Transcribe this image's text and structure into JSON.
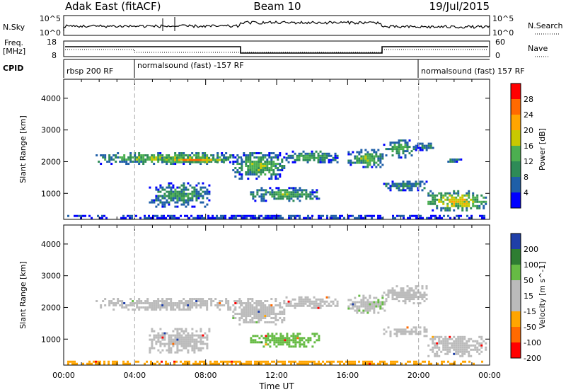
{
  "header": {
    "radar": "Adak East (fitACF)",
    "beam": "Beam 10",
    "date": "19/Jul/2015"
  },
  "top_panels": {
    "nsky_label": "N.Sky",
    "nsky_ticks": [
      "10^5",
      "10^0"
    ],
    "nsearch_label": "N.Search",
    "nsearch_ticks": [
      "10^5",
      "10^0"
    ],
    "freq_label_1": "Freq.",
    "freq_label_2": "[MHz]",
    "freq_ticks": [
      "18",
      "8"
    ],
    "nave_label": "Nave",
    "nave_ticks": [
      "60",
      "0"
    ],
    "cpid_label": "CPID",
    "cpid_segments": [
      {
        "label": "rbsp 200 RF",
        "start": 0,
        "end": 4
      },
      {
        "label": "normalsound (fast) -157 RF",
        "start": 4,
        "end": 20
      },
      {
        "label": "normalsound (fast) 157 RF",
        "start": 20,
        "end": 24
      }
    ]
  },
  "colors": {
    "power_scale": [
      "#0000ff",
      "#1f5fa8",
      "#2e8b57",
      "#4caf50",
      "#c8c800",
      "#ffa500",
      "#ff6a00",
      "#ff0000"
    ],
    "velocity_scale": [
      "#1f3fa8",
      "#2e7d32",
      "#66bb44",
      "#bbbbbb",
      "#bbbbbb",
      "#ffa500",
      "#ff6a00",
      "#ff0000"
    ],
    "grid_dash": "#aaaaaa"
  },
  "chart_data": [
    {
      "type": "heatmap",
      "name": "power",
      "ylabel": "Slant Range [km]",
      "xlabel": "",
      "xlim": [
        0,
        24
      ],
      "ylim": [
        180,
        4600
      ],
      "yticks": [
        1000,
        2000,
        3000,
        4000
      ],
      "colorbar_label": "Power [dB]",
      "colorbar_ticks": [
        "28",
        "24",
        "20",
        "16",
        "12",
        "8",
        "4"
      ],
      "zlim": [
        0,
        32
      ],
      "bands": [
        {
          "t": [
            1.8,
            10.0
          ],
          "r": [
            1900,
            2300
          ],
          "level": 18
        },
        {
          "t": [
            5.5,
            9.5
          ],
          "r": [
            1950,
            2150
          ],
          "level": 26
        },
        {
          "t": [
            9.5,
            12.5
          ],
          "r": [
            1400,
            2300
          ],
          "level": 16
        },
        {
          "t": [
            12.5,
            15.5
          ],
          "r": [
            1950,
            2350
          ],
          "level": 14
        },
        {
          "t": [
            16.0,
            18.2
          ],
          "r": [
            1800,
            2400
          ],
          "level": 17
        },
        {
          "t": [
            18.0,
            19.8
          ],
          "r": [
            2100,
            2700
          ],
          "level": 15
        },
        {
          "t": [
            19.8,
            21.0
          ],
          "r": [
            2300,
            2600
          ],
          "level": 10
        },
        {
          "t": [
            21.5,
            22.5
          ],
          "r": [
            1950,
            2100
          ],
          "level": 12
        },
        {
          "t": [
            4.8,
            8.3
          ],
          "r": [
            550,
            1350
          ],
          "level": 12
        },
        {
          "t": [
            10.5,
            14.5
          ],
          "r": [
            750,
            1200
          ],
          "level": 14
        },
        {
          "t": [
            18.0,
            20.5
          ],
          "r": [
            1050,
            1400
          ],
          "level": 11
        },
        {
          "t": [
            20.5,
            23.8
          ],
          "r": [
            400,
            1100
          ],
          "level": 22
        },
        {
          "t": [
            0.2,
            24.0
          ],
          "r": [
            180,
            320
          ],
          "level": 6
        }
      ]
    },
    {
      "type": "heatmap",
      "name": "velocity",
      "ylabel": "Slant Range [km]",
      "xlabel": "Time UT",
      "xlim": [
        0,
        24
      ],
      "ylim": [
        180,
        4600
      ],
      "yticks": [
        1000,
        2000,
        3000,
        4000
      ],
      "xticks": [
        "00:00",
        "04:00",
        "08:00",
        "12:00",
        "16:00",
        "20:00",
        "00:00"
      ],
      "colorbar_label": "Velocity [m s^-1]",
      "colorbar_ticks": [
        "200",
        "100",
        "50",
        "15",
        "-15",
        "-50",
        "-100",
        "-200"
      ],
      "bands": [
        {
          "t": [
            1.8,
            10.0
          ],
          "r": [
            1900,
            2300
          ],
          "v": 0
        },
        {
          "t": [
            9.5,
            12.5
          ],
          "r": [
            1400,
            2300
          ],
          "v": 0
        },
        {
          "t": [
            12.5,
            15.5
          ],
          "r": [
            1950,
            2350
          ],
          "v": 0
        },
        {
          "t": [
            16.0,
            18.2
          ],
          "r": [
            1800,
            2400
          ],
          "v": 10
        },
        {
          "t": [
            18.0,
            20.5
          ],
          "r": [
            2100,
            2700
          ],
          "v": 0
        },
        {
          "t": [
            4.8,
            8.3
          ],
          "r": [
            550,
            1350
          ],
          "v": 0
        },
        {
          "t": [
            10.5,
            14.5
          ],
          "r": [
            750,
            1200
          ],
          "v": 40
        },
        {
          "t": [
            18.0,
            20.5
          ],
          "r": [
            1050,
            1400
          ],
          "v": 0
        },
        {
          "t": [
            20.5,
            23.8
          ],
          "r": [
            400,
            1100
          ],
          "v": 0
        },
        {
          "t": [
            0.2,
            24.0
          ],
          "r": [
            180,
            320
          ],
          "v": -30
        }
      ]
    }
  ]
}
